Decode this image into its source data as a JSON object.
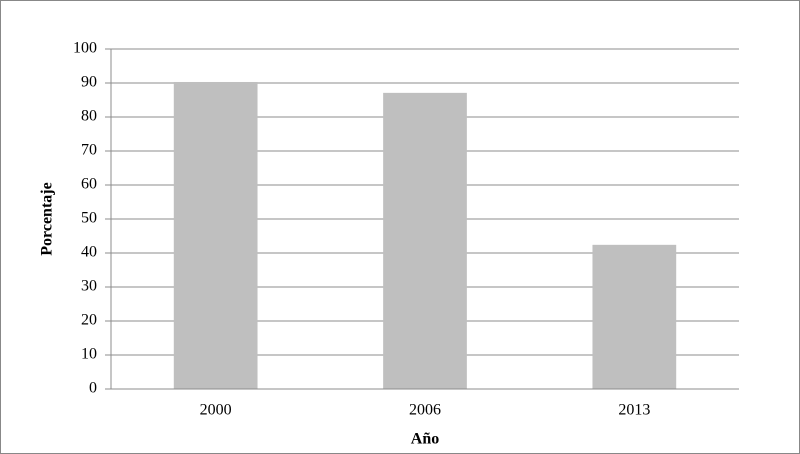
{
  "chart_data": {
    "type": "bar",
    "x_label": "Año",
    "y_label": "Porcentaje",
    "categories": [
      "2000",
      "2006",
      "2013"
    ],
    "values": [
      90.3,
      87.1,
      42.4
    ],
    "color": "#bfbfbf",
    "ylim": [
      0,
      100
    ],
    "yticks": [
      0,
      10,
      20,
      30,
      40,
      50,
      60,
      70,
      80,
      90,
      100
    ],
    "grid": true
  }
}
